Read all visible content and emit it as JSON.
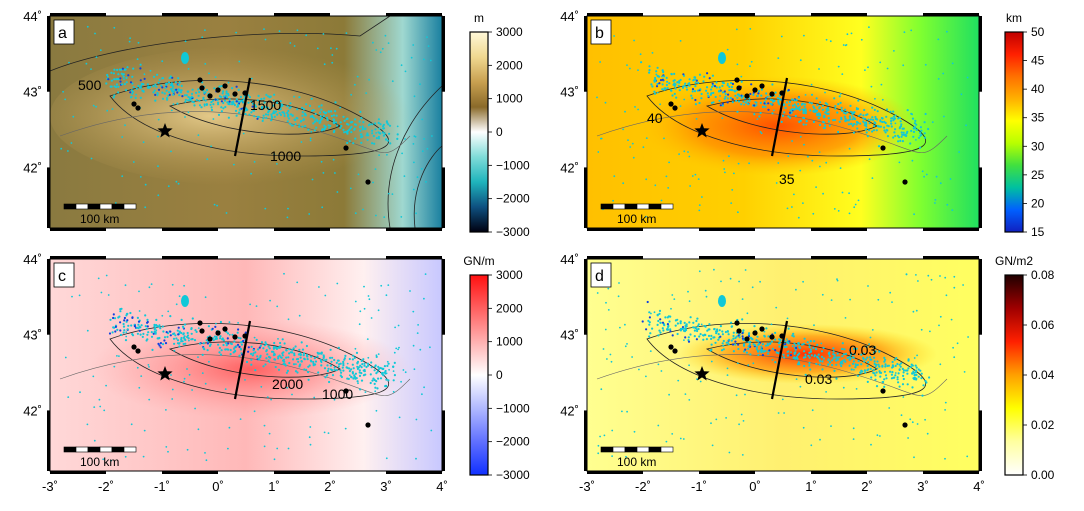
{
  "panels": [
    {
      "letter": "a",
      "unit": "m",
      "cbar_ticks": [
        "3000",
        "2000",
        "1000",
        "0",
        "−1000",
        "−2000",
        "−3000"
      ],
      "cbar_colors": [
        "#fff8d8",
        "#f0d890",
        "#c8a050",
        "#8a6a2a",
        "#ffffff",
        "#7fdcd8",
        "#1fb4bc",
        "#0e5080",
        "#000010"
      ],
      "contour_labels": [
        "500",
        "1500",
        "1000"
      ]
    },
    {
      "letter": "b",
      "unit": "km",
      "cbar_ticks": [
        "50",
        "45",
        "40",
        "35",
        "30",
        "25",
        "20",
        "15"
      ],
      "cbar_colors": [
        "#c00000",
        "#ff2000",
        "#ff7000",
        "#ffb000",
        "#ffff00",
        "#b8ff00",
        "#40e040",
        "#00c0a0",
        "#0060ff",
        "#1020c0"
      ],
      "contour_labels": [
        "40",
        "35"
      ]
    },
    {
      "letter": "c",
      "unit": "GN/m",
      "cbar_ticks": [
        "3000",
        "2000",
        "1000",
        "0",
        "−1000",
        "−2000",
        "−3000"
      ],
      "cbar_colors": [
        "#ff1010",
        "#ff6060",
        "#ffb0b0",
        "#ffffff",
        "#b0b8ff",
        "#6070ff",
        "#1030ff"
      ],
      "contour_labels": [
        "2000",
        "1000"
      ]
    },
    {
      "letter": "d",
      "unit": "GN/m2",
      "cbar_ticks": [
        "0.08",
        "0.06",
        "0.04",
        "0.02",
        "0.00"
      ],
      "cbar_colors": [
        "#200000",
        "#a00000",
        "#ff2000",
        "#ffa000",
        "#ffff00",
        "#ffffa0",
        "#ffffff"
      ],
      "contour_labels": [
        "0.03",
        "0.03"
      ]
    }
  ],
  "lat_labels": [
    "44˚",
    "43˚",
    "42˚"
  ],
  "lon_labels": [
    "-3˚",
    "-2˚",
    "-1˚",
    "0˚",
    "1˚",
    "2˚",
    "3˚",
    "4˚"
  ],
  "scale_label": "100 km",
  "colors": {
    "seismicity_shallow": "#10c8d8",
    "seismicity_deep": "#1040e0",
    "events": "#000000"
  }
}
